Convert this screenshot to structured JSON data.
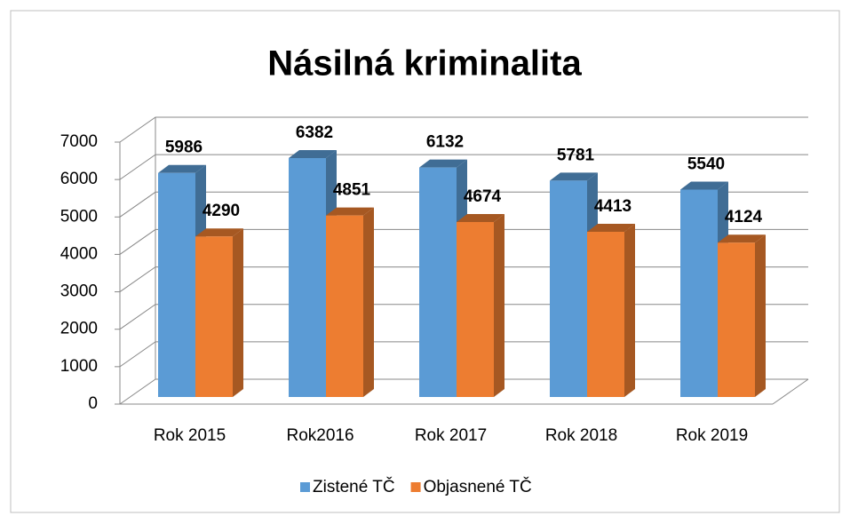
{
  "chart_data": {
    "type": "bar3d",
    "title": "Násilná kriminalita",
    "categories": [
      "Rok 2015",
      "Rok2016",
      "Rok 2017",
      "Rok 2018",
      "Rok 2019"
    ],
    "series": [
      {
        "name": "Zistené TČ",
        "color": "#5b9bd5",
        "values": [
          5986,
          6382,
          6132,
          5781,
          5540
        ]
      },
      {
        "name": "Objasnené TČ",
        "color": "#ed7d31",
        "values": [
          4290,
          4851,
          4674,
          4413,
          4124
        ]
      }
    ],
    "ylim": [
      0,
      7000
    ],
    "yticks": [
      0,
      1000,
      2000,
      3000,
      4000,
      5000,
      6000,
      7000
    ],
    "grid": true,
    "legend": "bottom"
  }
}
